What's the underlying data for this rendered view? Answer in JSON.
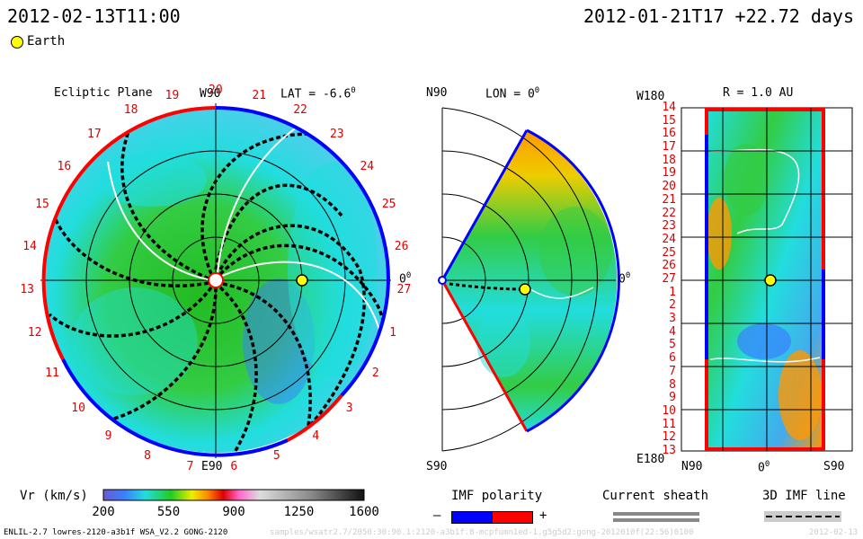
{
  "header": {
    "model_time": "2012-02-13T11:00",
    "reference": "2012-01-21T17 +22.72 days"
  },
  "legend": {
    "earth_label": "Earth"
  },
  "colors": {
    "red": "#ff0000",
    "blue": "#0000ff",
    "earth": "#ffff00"
  },
  "ecliptic": {
    "title": "Ecliptic Plane",
    "lat_label": "LAT = -6.6",
    "lat_degree": "0",
    "top": "W90",
    "bottom": "E90",
    "right": "0",
    "right_degree": "0",
    "rotations": [
      "20",
      "21",
      "22",
      "23",
      "24",
      "25",
      "26",
      "27",
      "1",
      "2",
      "3",
      "4",
      "5",
      "6",
      "7",
      "8",
      "9",
      "10",
      "11",
      "12",
      "13",
      "14",
      "15",
      "16",
      "17",
      "18",
      "19"
    ]
  },
  "meridional": {
    "title": "N90",
    "lon_label": "LON = 0",
    "lon_degree": "0",
    "bottom": "S90",
    "right": "0",
    "right_degree": "0"
  },
  "radial": {
    "title": "R = 1.0 AU",
    "top_left": "W180",
    "bottom_left": "E180",
    "x_labels": {
      "left": "N90",
      "center": "0",
      "center_degree": "0",
      "right": "S90"
    },
    "rows": [
      "14",
      "15",
      "16",
      "17",
      "18",
      "19",
      "20",
      "21",
      "22",
      "23",
      "24",
      "25",
      "26",
      "27",
      "1",
      "2",
      "3",
      "4",
      "5",
      "6",
      "7",
      "8",
      "9",
      "10",
      "11",
      "12",
      "13"
    ]
  },
  "colorbar": {
    "label": "Vr (km/s)",
    "ticks": [
      "200",
      "550",
      "900",
      "1250",
      "1600"
    ]
  },
  "imf": {
    "label": "IMF polarity",
    "minus": "–",
    "plus": "+"
  },
  "sheath": {
    "label": "Current sheath"
  },
  "imf3d": {
    "label": "3D IMF line"
  },
  "footer": {
    "left": "ENLIL-2.7 lowres-2120-a3b1f WSA_V2.2 GONG-2120",
    "path": "samples/wsatr2.7/2050:30:90.1:2120-a3b1f.8-mcpfumn1ed-1.g5g5d2:gong-2012010f(22:56)0100",
    "right": "2012-02-13"
  }
}
